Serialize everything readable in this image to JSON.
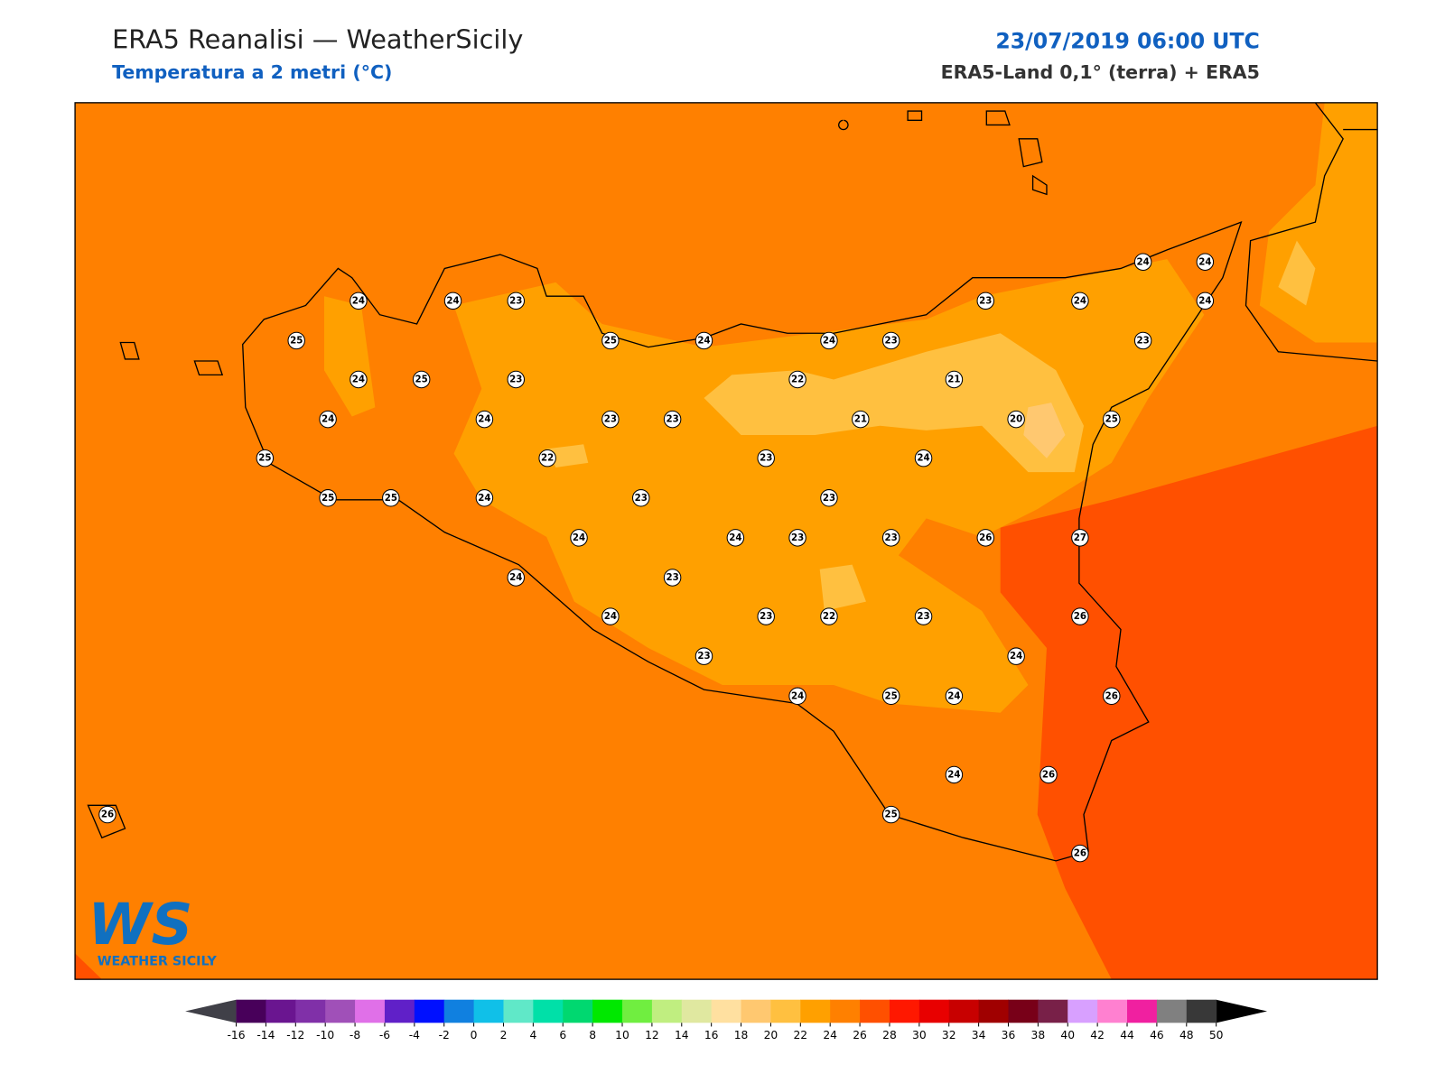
{
  "header": {
    "title": "ERA5 Reanalisi — WeatherSicily",
    "subtitle": "Temperatura a 2 metri (°C)",
    "datetime": "23/07/2019 06:00 UTC",
    "source": "ERA5-Land 0,1° (terra) + ERA5"
  },
  "stations": [
    24,
    24,
    23,
    25,
    25,
    24,
    24,
    23,
    23,
    24,
    24,
    24,
    24,
    23,
    24,
    25,
    23,
    22,
    21,
    24,
    24,
    23,
    23,
    21,
    20,
    25,
    25,
    22,
    23,
    24,
    25,
    25,
    24,
    23,
    23,
    24,
    24,
    23,
    23,
    26,
    27,
    24,
    23,
    24,
    23,
    22,
    23,
    26,
    24,
    23,
    24,
    25,
    24,
    26,
    24,
    26,
    25,
    26,
    26
  ],
  "logo": {
    "mark": "WS",
    "name": "WEATHER SICILY"
  },
  "colorbar": {
    "ticks": [
      -16,
      -14,
      -12,
      -10,
      -8,
      -6,
      -4,
      -2,
      0,
      2,
      4,
      6,
      8,
      10,
      12,
      14,
      16,
      18,
      20,
      22,
      24,
      26,
      28,
      30,
      32,
      34,
      36,
      38,
      40,
      42,
      44,
      46,
      48,
      50
    ],
    "colors": [
      "#48005a",
      "#6a1590",
      "#8030a8",
      "#a050b8",
      "#e070e8",
      "#6020c8",
      "#0010ff",
      "#1080e0",
      "#10c0e8",
      "#60e8c8",
      "#00e0a8",
      "#00d870",
      "#00e800",
      "#70ee40",
      "#c0ee80",
      "#e0e8a0",
      "#ffe0a0",
      "#ffc870",
      "#ffc040",
      "#ffa000",
      "#ff8000",
      "#ff5000",
      "#ff1800",
      "#e80000",
      "#c80000",
      "#a00000",
      "#780018",
      "#782048",
      "#d8a0ff",
      "#ff80d0",
      "#f020a0",
      "#808080",
      "#383838"
    ],
    "under_color": "#404048",
    "over_color": "#000000"
  }
}
